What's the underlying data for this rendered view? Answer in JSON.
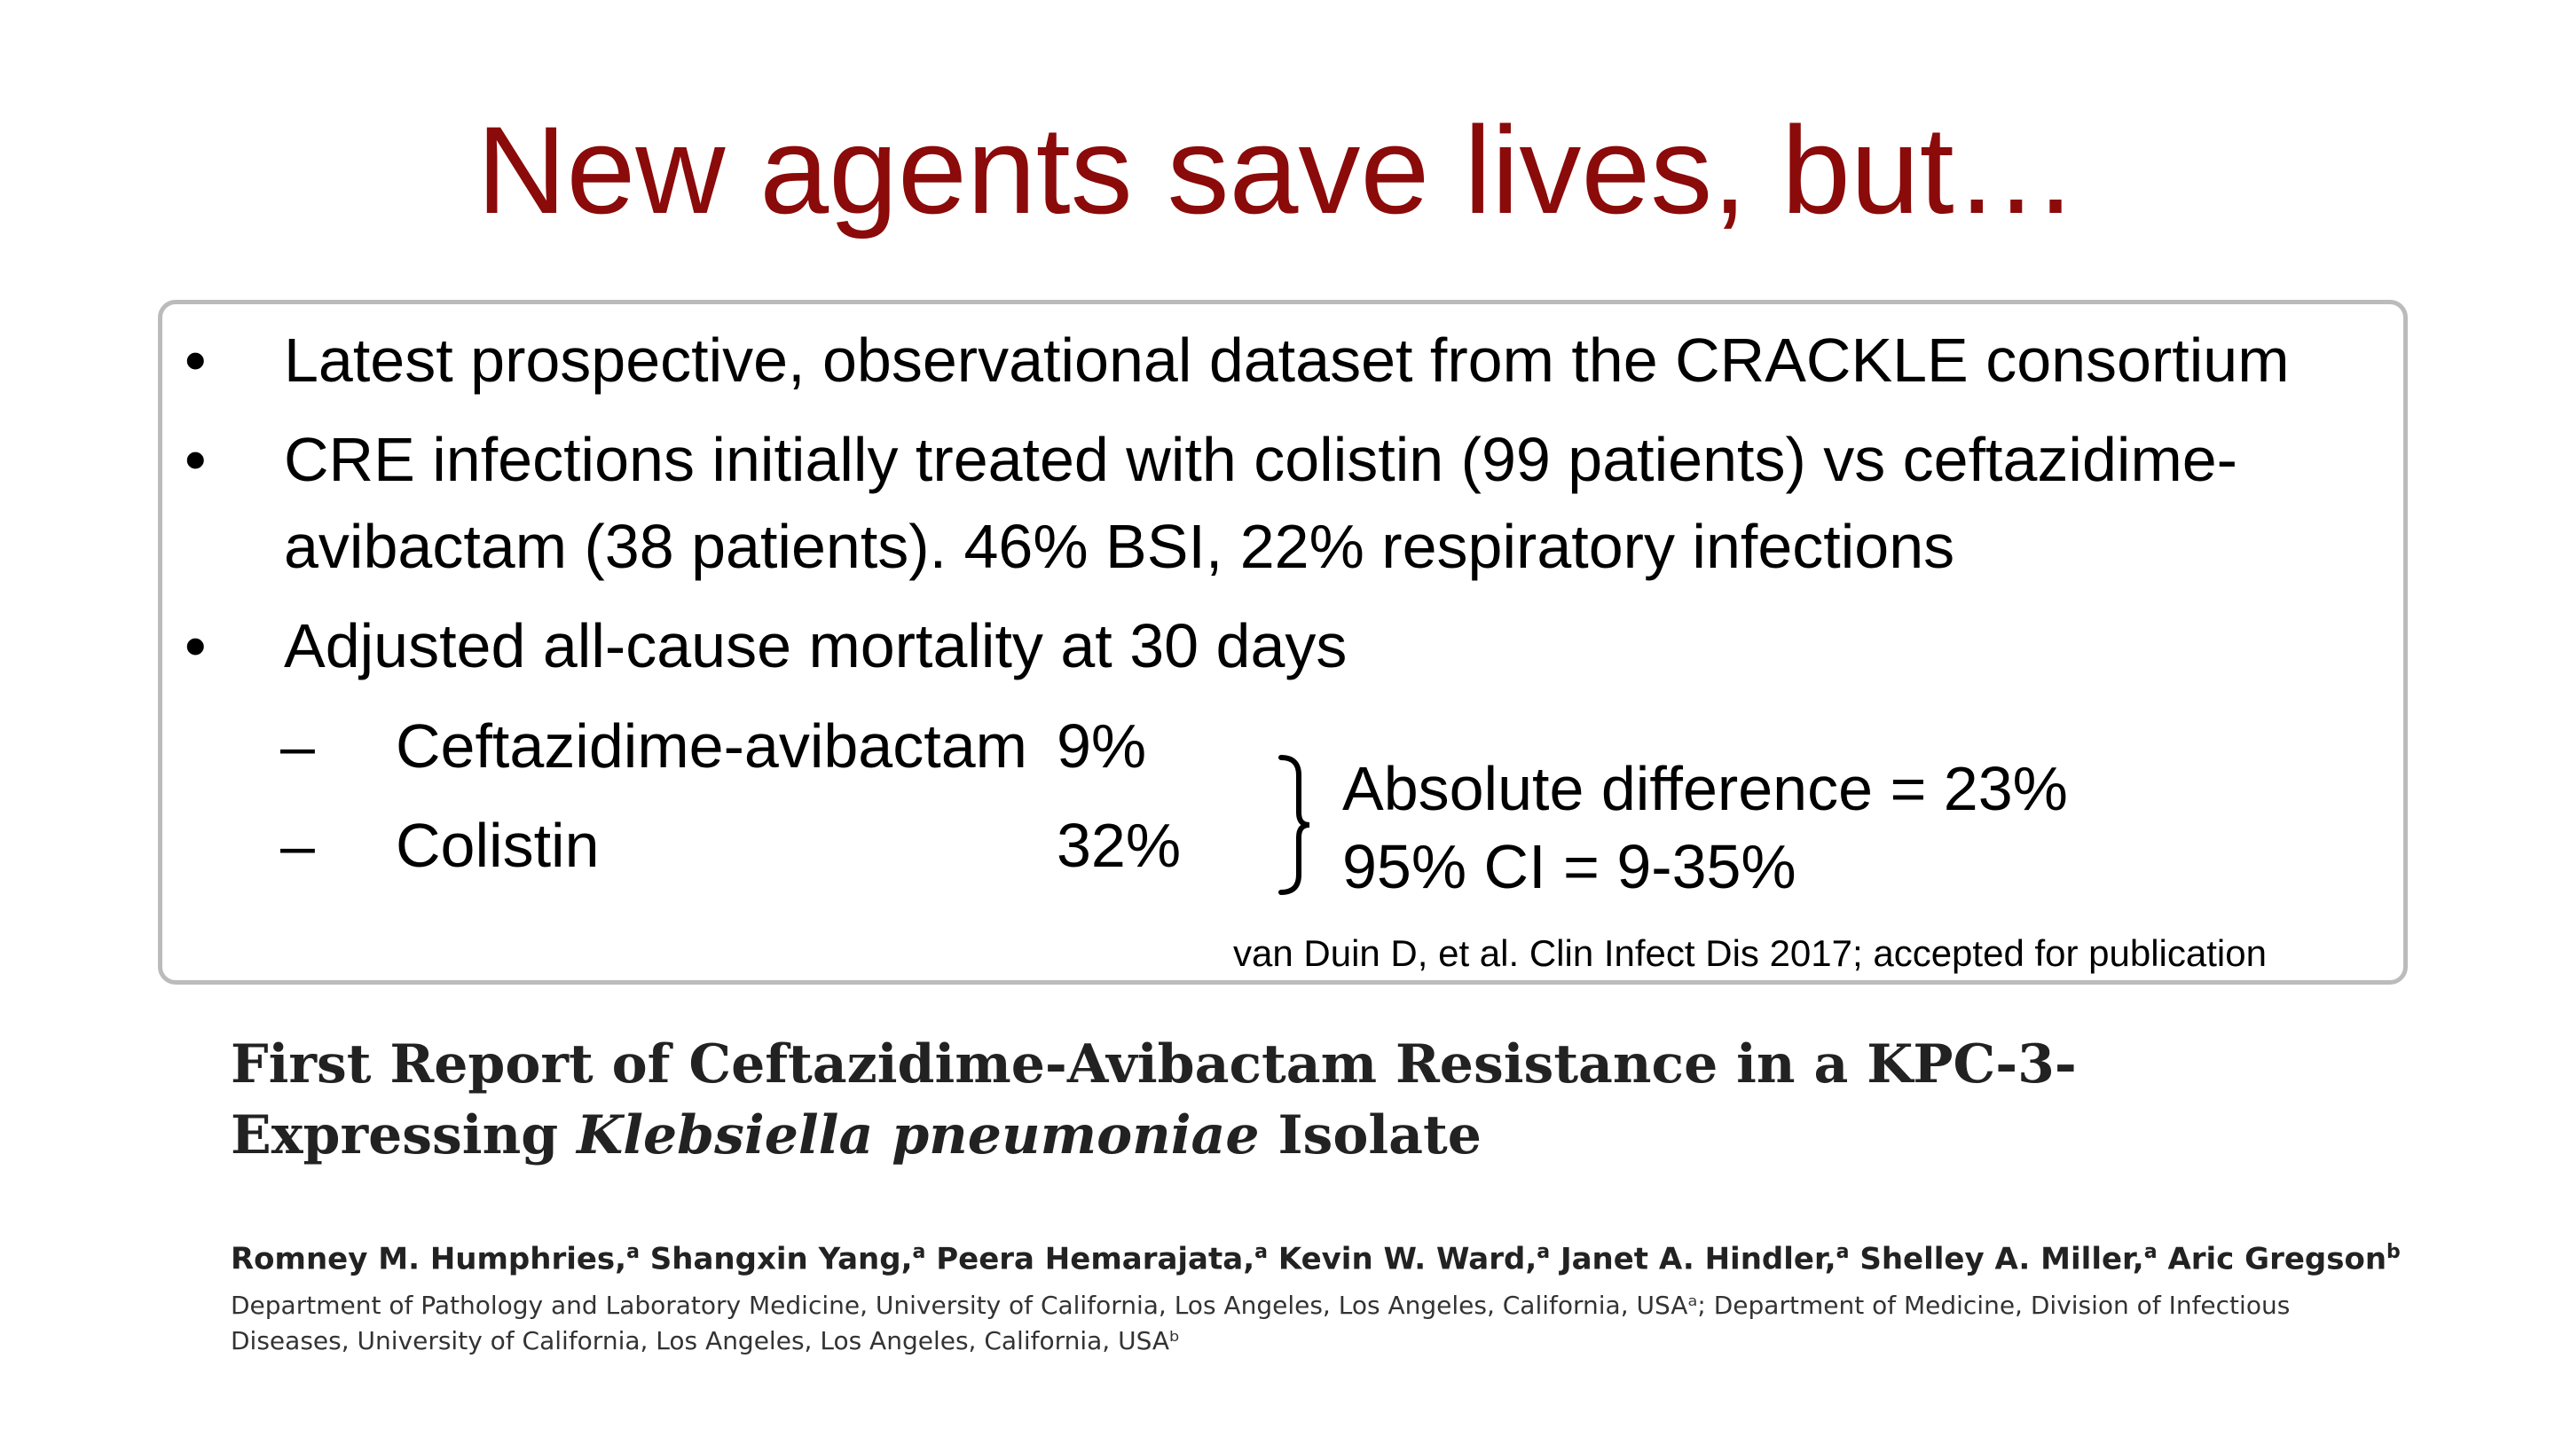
{
  "title": "New agents save lives, but…",
  "bullets": [
    {
      "marker": "•",
      "lines": [
        "Latest prospective, observational dataset from the CRACKLE consortium"
      ]
    },
    {
      "marker": "•",
      "lines": [
        "CRE infections initially treated with colistin (99 patients) vs ceftazidime-",
        "avibactam (38 patients). 46% BSI, 22% respiratory infections"
      ]
    },
    {
      "marker": "•",
      "lines": [
        "Adjusted all-cause mortality at 30 days"
      ]
    }
  ],
  "sub_items": [
    {
      "marker": "–",
      "label": "Ceftazidime-avibactam",
      "value": "9%"
    },
    {
      "marker": "–",
      "label": "Colistin",
      "value": "32%"
    }
  ],
  "brace_note": {
    "line1": "Absolute difference = 23%",
    "line2": "95% CI = 9-35%"
  },
  "citation": "van Duin D, et al. Clin Infect Dis 2017; accepted for publication",
  "paper": {
    "title_line1": "First Report of Ceftazidime-Avibactam Resistance in a KPC-3-",
    "title_line2_pre": "Expressing ",
    "title_line2_italic": "Klebsiella pneumoniae",
    "title_line2_post": " Isolate",
    "authors": [
      {
        "name": "Romney M. Humphries,",
        "sup": "a"
      },
      {
        "name": "Shangxin Yang,",
        "sup": "a"
      },
      {
        "name": "Peera Hemarajata,",
        "sup": "a"
      },
      {
        "name": "Kevin W. Ward,",
        "sup": "a"
      },
      {
        "name": "Janet A. Hindler,",
        "sup": "a"
      },
      {
        "name": "Shelley A. Miller,",
        "sup": "a"
      },
      {
        "name": "Aric Gregson",
        "sup": "b"
      }
    ],
    "affiliation_line1": "Department of Pathology and Laboratory Medicine, University of California, Los Angeles, Los Angeles, California, USAᵃ; Department of Medicine, Division of Infectious",
    "affiliation_line2": "Diseases, University of California, Los Angeles, Los Angeles, California, USAᵇ"
  }
}
